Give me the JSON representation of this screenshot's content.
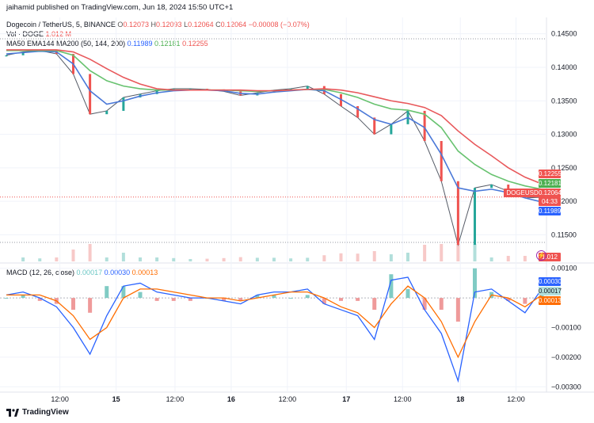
{
  "publisher_line": "jaihamid published on TradingView.com, Jun 18, 2024 15:50 UTC+1",
  "legend": {
    "symbol": "Dogecoin / TetherUS, 5, BINANCE",
    "o_label": "O",
    "o_value": "0.12073",
    "h_label": "H",
    "h_value": "0.12093",
    "l_label": "L",
    "l_value": "0.12064",
    "c_label": "C",
    "c_value": "0.12064",
    "change": "−0.00008 (−0.07%)",
    "vol_label": "Vol · DOGE",
    "vol_value": "1.012 M",
    "ma_label": "MA50 EMA144 MA200 (50, 144, 200)",
    "ma50_value": "0.11989",
    "ema144_value": "0.12181",
    "ma200_value": "0.12255",
    "macd_label": "MACD (12, 26, close)",
    "macd_hist_value": "0.00017",
    "macd_value": "0.00030",
    "macd_signal_value": "0.00013"
  },
  "price_badges": {
    "ma200": "0.12255",
    "ema144": "0.12181",
    "symbol_tag": "DOGEUSDT",
    "last": "0.12064",
    "countdown": "04:33",
    "ma50": "0.11989",
    "volume": "1.012 M"
  },
  "macd_badges": {
    "macd": "0.00030",
    "hist": "0.00017",
    "signal": "0.00013"
  },
  "colors": {
    "up": "#26a69a",
    "down": "#ef5350",
    "ma50": "#4a78d8",
    "ema144": "#67c26f",
    "ma200": "#e8585b",
    "macd_line": "#2962ff",
    "signal_line": "#ff6d00"
  },
  "footer_brand": "TradingView",
  "chart_data": [
    {
      "type": "line",
      "title": "Dogecoin / TetherUS, 5, BINANCE",
      "x_ticks": [
        "12:00",
        "15",
        "12:00",
        "16",
        "12:00",
        "17",
        "12:00",
        "18",
        "12:00"
      ],
      "y_ticks": [
        "0.14500",
        "0.14000",
        "0.13500",
        "0.13000",
        "0.12500",
        "0.12000",
        "0.11500"
      ],
      "ylim": [
        0.1115,
        0.1465
      ],
      "x": [
        0,
        3,
        6,
        9,
        12,
        15,
        18,
        21,
        24,
        27,
        30,
        33,
        36,
        39,
        42,
        45,
        48,
        51,
        54,
        57,
        60,
        63,
        66,
        69,
        72,
        75,
        78,
        81,
        84,
        87,
        90,
        93,
        96
      ],
      "series": [
        {
          "name": "price",
          "values": [
            0.1418,
            0.1423,
            0.1425,
            0.142,
            0.139,
            0.133,
            0.1335,
            0.1355,
            0.136,
            0.1365,
            0.1368,
            0.1368,
            0.1367,
            0.1364,
            0.1358,
            0.1362,
            0.1366,
            0.1368,
            0.1372,
            0.136,
            0.1342,
            0.1325,
            0.13,
            0.1315,
            0.1335,
            0.129,
            0.123,
            0.1135,
            0.122,
            0.1225,
            0.1215,
            0.1205,
            0.1206
          ]
        },
        {
          "name": "MA50",
          "values": [
            0.142,
            0.1422,
            0.1424,
            0.1423,
            0.1405,
            0.1365,
            0.1345,
            0.135,
            0.1357,
            0.1362,
            0.1365,
            0.1366,
            0.1366,
            0.1365,
            0.1361,
            0.136,
            0.1363,
            0.1365,
            0.1367,
            0.1365,
            0.1352,
            0.1338,
            0.1322,
            0.1315,
            0.1325,
            0.131,
            0.127,
            0.122,
            0.1215,
            0.1218,
            0.1213,
            0.1205,
            0.1199
          ]
        },
        {
          "name": "EMA144",
          "values": [
            0.1425,
            0.1425,
            0.1425,
            0.1425,
            0.1418,
            0.1395,
            0.138,
            0.1372,
            0.1368,
            0.1366,
            0.1366,
            0.1366,
            0.1366,
            0.1366,
            0.1365,
            0.1364,
            0.1365,
            0.1366,
            0.1367,
            0.1367,
            0.1362,
            0.1355,
            0.1345,
            0.1338,
            0.1336,
            0.133,
            0.131,
            0.1275,
            0.1255,
            0.124,
            0.123,
            0.1223,
            0.1218
          ]
        },
        {
          "name": "MA200",
          "values": [
            0.1426,
            0.1426,
            0.1426,
            0.1426,
            0.1423,
            0.1412,
            0.1398,
            0.1385,
            0.1375,
            0.1368,
            0.1366,
            0.1366,
            0.1366,
            0.1366,
            0.1366,
            0.1365,
            0.1365,
            0.1366,
            0.1367,
            0.1368,
            0.1366,
            0.1362,
            0.1356,
            0.135,
            0.1346,
            0.134,
            0.1328,
            0.1305,
            0.1285,
            0.1268,
            0.125,
            0.1236,
            0.1226
          ]
        }
      ]
    },
    {
      "type": "line",
      "title": "MACD (12, 26, close)",
      "y_ticks": [
        "0.00100",
        "−0.00100",
        "−0.00200",
        "−0.00300"
      ],
      "ylim": [
        -0.0031,
        0.0011
      ],
      "x": [
        0,
        3,
        6,
        9,
        12,
        15,
        18,
        21,
        24,
        27,
        30,
        33,
        36,
        39,
        42,
        45,
        48,
        51,
        54,
        57,
        60,
        63,
        66,
        69,
        72,
        75,
        78,
        81,
        84,
        87,
        90,
        93,
        96
      ],
      "series": [
        {
          "name": "MACD",
          "values": [
            0.0001,
            0.0002,
            0.0,
            -0.0003,
            -0.001,
            -0.0019,
            -0.0006,
            0.0004,
            0.0005,
            0.0002,
            0.0001,
            0.0,
            0.0,
            -0.0001,
            -0.0002,
            0.0001,
            0.0002,
            0.0002,
            0.0003,
            -0.0002,
            -0.0004,
            -0.0006,
            -0.0014,
            0.0006,
            0.0007,
            -0.0004,
            -0.0012,
            -0.0028,
            0.0002,
            0.0003,
            -0.0001,
            -0.0005,
            0.0003
          ]
        },
        {
          "name": "Signal",
          "values": [
            0.0001,
            0.0001,
            0.0001,
            -0.0001,
            -0.0006,
            -0.0014,
            -0.001,
            0.0,
            0.0003,
            0.0003,
            0.0002,
            0.0001,
            0.0,
            0.0,
            -0.0001,
            0.0,
            0.0001,
            0.0002,
            0.0002,
            0.0,
            -0.0003,
            -0.0005,
            -0.001,
            -0.0002,
            0.0004,
            0.0,
            -0.0008,
            -0.002,
            -0.0008,
            0.0001,
            0.0,
            -0.0003,
            0.0001
          ]
        },
        {
          "name": "Histogram",
          "values": [
            0.0,
            0.0001,
            -0.0001,
            -0.0002,
            -0.0004,
            -0.0005,
            0.0004,
            0.0004,
            0.0002,
            -0.0001,
            -0.0001,
            -0.0001,
            0.0,
            -0.0001,
            -0.0001,
            0.0001,
            0.0001,
            0.0,
            0.0001,
            -0.0002,
            -0.0001,
            -0.0001,
            -0.0004,
            0.0008,
            0.0003,
            -0.0004,
            -0.0004,
            -0.0008,
            0.001,
            0.0002,
            -0.0001,
            -0.0002,
            0.0002
          ]
        }
      ]
    }
  ]
}
